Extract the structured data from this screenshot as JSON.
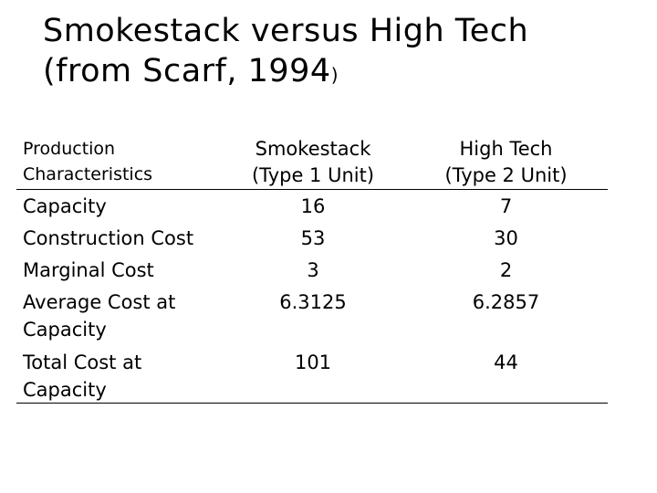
{
  "title": {
    "line1": "Smokestack versus High Tech",
    "line2_main": "(from Scarf, 1994",
    "line2_paren": ")"
  },
  "table": {
    "headers": {
      "characteristic": [
        "Production",
        "Characteristics"
      ],
      "smokestack": [
        "Smokestack",
        "(Type 1 Unit)"
      ],
      "hightech": [
        "High Tech",
        "(Type 2 Unit)"
      ]
    },
    "rows": [
      {
        "label": [
          "Capacity"
        ],
        "smokestack": "16",
        "hightech": "7"
      },
      {
        "label": [
          "Construction Cost"
        ],
        "smokestack": "53",
        "hightech": "30"
      },
      {
        "label": [
          "Marginal Cost"
        ],
        "smokestack": "3",
        "hightech": "2"
      },
      {
        "label": [
          "Average Cost at",
          "Capacity"
        ],
        "smokestack": "6.3125",
        "hightech": "6.2857"
      },
      {
        "label": [
          "Total Cost at",
          "Capacity"
        ],
        "smokestack": "101",
        "hightech": "44"
      }
    ]
  }
}
